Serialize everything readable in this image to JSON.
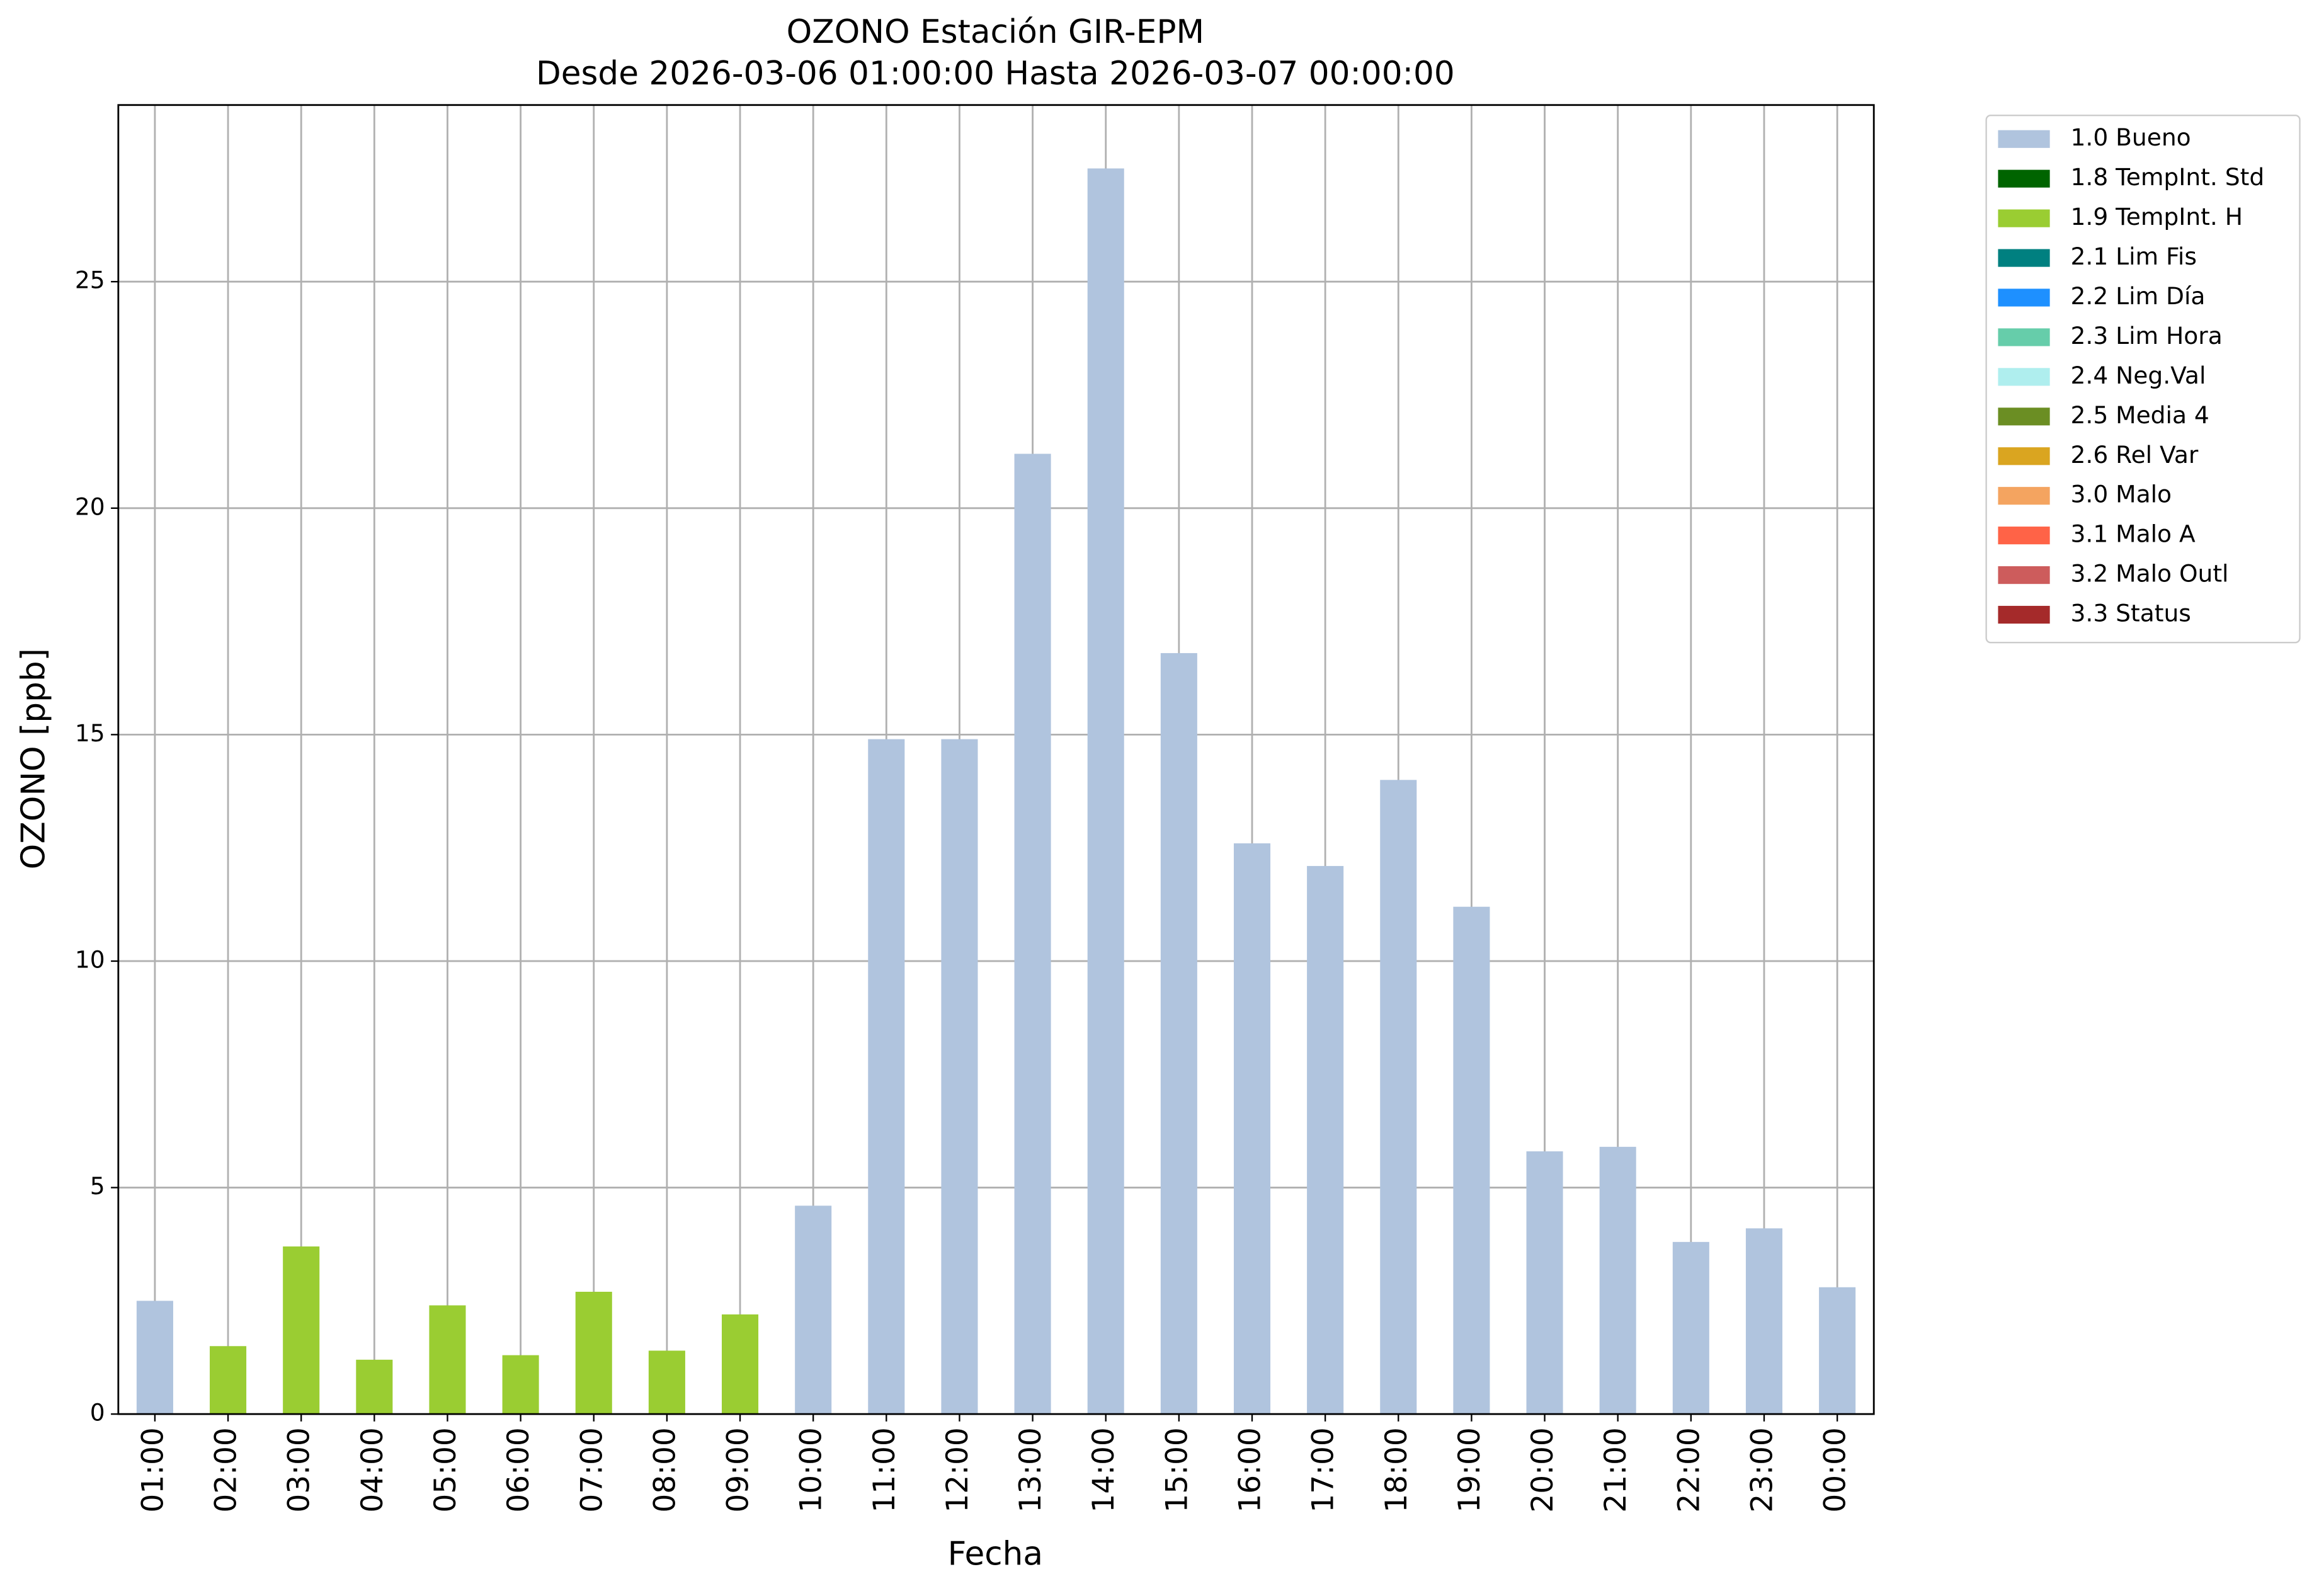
{
  "chart_data": {
    "type": "stacked_bar",
    "title": "OZONO Estación GIR-EPM",
    "subtitle": "Desde 2026-03-06 01:00:00 Hasta 2026-03-07 00:00:00",
    "xlabel": "Fecha",
    "ylabel": "OZONO [ppb]",
    "categories": [
      "01:00",
      "02:00",
      "03:00",
      "04:00",
      "05:00",
      "06:00",
      "07:00",
      "08:00",
      "09:00",
      "10:00",
      "11:00",
      "12:00",
      "13:00",
      "14:00",
      "15:00",
      "16:00",
      "17:00",
      "18:00",
      "19:00",
      "20:00",
      "21:00",
      "22:00",
      "23:00",
      "00:00"
    ],
    "series": [
      {
        "name": "1.0 Bueno",
        "color": "#b0c4de",
        "values": [
          2.5,
          null,
          null,
          null,
          null,
          null,
          null,
          null,
          null,
          4.6,
          14.9,
          14.9,
          21.2,
          27.5,
          16.8,
          12.6,
          12.1,
          14.0,
          11.2,
          5.8,
          5.9,
          3.8,
          4.1,
          2.8
        ]
      },
      {
        "name": "1.8 TempInt. Std",
        "color": "#006400",
        "values": [
          null,
          null,
          null,
          null,
          null,
          null,
          null,
          null,
          null,
          null,
          null,
          null,
          null,
          null,
          null,
          null,
          null,
          null,
          null,
          null,
          null,
          null,
          null,
          null
        ]
      },
      {
        "name": "1.9 TempInt. H",
        "color": "#9acd32",
        "values": [
          null,
          1.5,
          3.7,
          1.2,
          2.4,
          1.3,
          2.7,
          1.4,
          2.2,
          null,
          null,
          null,
          null,
          null,
          null,
          null,
          null,
          null,
          null,
          null,
          null,
          null,
          null,
          null
        ]
      },
      {
        "name": "2.1 Lim Fis",
        "color": "#008080",
        "values": [
          null,
          null,
          null,
          null,
          null,
          null,
          null,
          null,
          null,
          null,
          null,
          null,
          null,
          null,
          null,
          null,
          null,
          null,
          null,
          null,
          null,
          null,
          null,
          null
        ]
      },
      {
        "name": "2.2 Lim Día",
        "color": "#1e90ff",
        "values": [
          null,
          null,
          null,
          null,
          null,
          null,
          null,
          null,
          null,
          null,
          null,
          null,
          null,
          null,
          null,
          null,
          null,
          null,
          null,
          null,
          null,
          null,
          null,
          null
        ]
      },
      {
        "name": "2.3 Lim Hora",
        "color": "#66cdaa",
        "values": [
          null,
          null,
          null,
          null,
          null,
          null,
          null,
          null,
          null,
          null,
          null,
          null,
          null,
          null,
          null,
          null,
          null,
          null,
          null,
          null,
          null,
          null,
          null,
          null
        ]
      },
      {
        "name": "2.4 Neg.Val",
        "color": "#afeeee",
        "values": [
          null,
          null,
          null,
          null,
          null,
          null,
          null,
          null,
          null,
          null,
          null,
          null,
          null,
          null,
          null,
          null,
          null,
          null,
          null,
          null,
          null,
          null,
          null,
          null
        ]
      },
      {
        "name": "2.5 Media 4",
        "color": "#6b8e23",
        "values": [
          null,
          null,
          null,
          null,
          null,
          null,
          null,
          null,
          null,
          null,
          null,
          null,
          null,
          null,
          null,
          null,
          null,
          null,
          null,
          null,
          null,
          null,
          null,
          null
        ]
      },
      {
        "name": "2.6 Rel Var",
        "color": "#daa520",
        "values": [
          null,
          null,
          null,
          null,
          null,
          null,
          null,
          null,
          null,
          null,
          null,
          null,
          null,
          null,
          null,
          null,
          null,
          null,
          null,
          null,
          null,
          null,
          null,
          null
        ]
      },
      {
        "name": "3.0 Malo",
        "color": "#f4a460",
        "values": [
          null,
          null,
          null,
          null,
          null,
          null,
          null,
          null,
          null,
          null,
          null,
          null,
          null,
          null,
          null,
          null,
          null,
          null,
          null,
          null,
          null,
          null,
          null,
          null
        ]
      },
      {
        "name": "3.1 Malo A",
        "color": "#ff6347",
        "values": [
          null,
          null,
          null,
          null,
          null,
          null,
          null,
          null,
          null,
          null,
          null,
          null,
          null,
          null,
          null,
          null,
          null,
          null,
          null,
          null,
          null,
          null,
          null,
          null
        ]
      },
      {
        "name": "3.2 Malo Outl",
        "color": "#cd5c5c",
        "values": [
          null,
          null,
          null,
          null,
          null,
          null,
          null,
          null,
          null,
          null,
          null,
          null,
          null,
          null,
          null,
          null,
          null,
          null,
          null,
          null,
          null,
          null,
          null,
          null
        ]
      },
      {
        "name": "3.3 Status",
        "color": "#a52a2a",
        "values": [
          null,
          null,
          null,
          null,
          null,
          null,
          null,
          null,
          null,
          null,
          null,
          null,
          null,
          null,
          null,
          null,
          null,
          null,
          null,
          null,
          null,
          null,
          null,
          null
        ]
      }
    ],
    "ylim": [
      0,
      28.9
    ],
    "yticks": [
      0,
      5,
      10,
      15,
      20,
      25
    ],
    "grid": true,
    "legend": "outside-right"
  }
}
